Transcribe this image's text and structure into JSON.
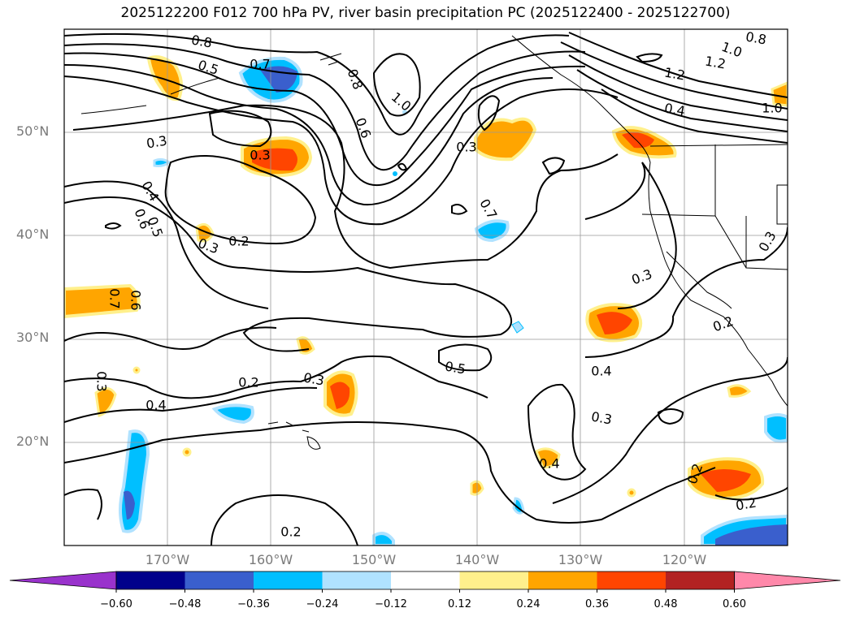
{
  "title": "2025122200 F012 700 hPa PV, river basin precipitation PC (2025122400 - 2025122700)",
  "map": {
    "lon_range": [
      -180,
      -110
    ],
    "lat_range": [
      10,
      60
    ],
    "lat_labels": [
      "50°N",
      "40°N",
      "30°N",
      "20°N"
    ],
    "lon_labels": [
      "170°W",
      "160°W",
      "150°W",
      "140°W",
      "130°W",
      "120°W"
    ],
    "contour_labels": [
      "0.8",
      "0.5",
      "0.7",
      "0.8",
      "1.0",
      "0.6",
      "0.3",
      "0.3",
      "0.4",
      "0.5",
      "0.6",
      "0.3",
      "0.2",
      "0.7",
      "0.3",
      "1.0",
      "1.2",
      "1.2",
      "1.0",
      "0.4",
      "0.8",
      "0.3",
      "0.6",
      "0.7",
      "0.3",
      "0.2",
      "0.5",
      "0.4",
      "0.3",
      "0.2",
      "0.3",
      "0.4",
      "0.2",
      "0.3",
      "0.2",
      "0.4",
      "0.2"
    ]
  },
  "colorbar": {
    "colors": [
      "#9932cc",
      "#00008b",
      "#3a5fcd",
      "#00bfff",
      "#b0e2ff",
      "#ffffff",
      "#fff08c",
      "#ffa500",
      "#ff4500",
      "#b22222",
      "#ff88aa"
    ],
    "labels": [
      "−0.60",
      "−0.48",
      "−0.36",
      "−0.24",
      "−0.12",
      "0.12",
      "0.24",
      "0.36",
      "0.48",
      "0.60"
    ]
  }
}
